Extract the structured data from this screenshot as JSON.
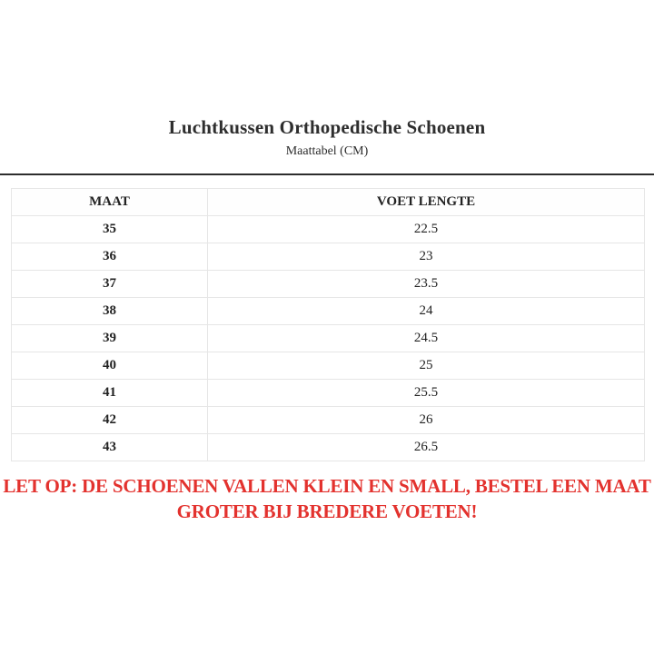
{
  "header": {
    "title": "Luchtkussen Orthopedische Schoenen",
    "subtitle": "Maattabel (CM)"
  },
  "table": {
    "columns": [
      "MAAT",
      "VOET LENGTE"
    ],
    "rows": [
      {
        "maat": "35",
        "voet_lengte": "22.5"
      },
      {
        "maat": "36",
        "voet_lengte": "23"
      },
      {
        "maat": "37",
        "voet_lengte": "23.5"
      },
      {
        "maat": "38",
        "voet_lengte": "24"
      },
      {
        "maat": "39",
        "voet_lengte": "24.5"
      },
      {
        "maat": "40",
        "voet_lengte": "25"
      },
      {
        "maat": "41",
        "voet_lengte": "25.5"
      },
      {
        "maat": "42",
        "voet_lengte": "26"
      },
      {
        "maat": "43",
        "voet_lengte": "26.5"
      }
    ]
  },
  "warning": {
    "lines": [
      "LET OP: DE SCHOENEN VALLEN KLEIN EN SMALL, BESTEL EEN MAAT",
      "GROTER BIJ BREDERE VOETEN!"
    ],
    "color": "#e3322e"
  },
  "colors": {
    "title_text": "#2e2e2e",
    "table_text": "#222222",
    "table_border": "#e6e6e6",
    "divider": "#2d2d2d",
    "background": "#ffffff"
  }
}
